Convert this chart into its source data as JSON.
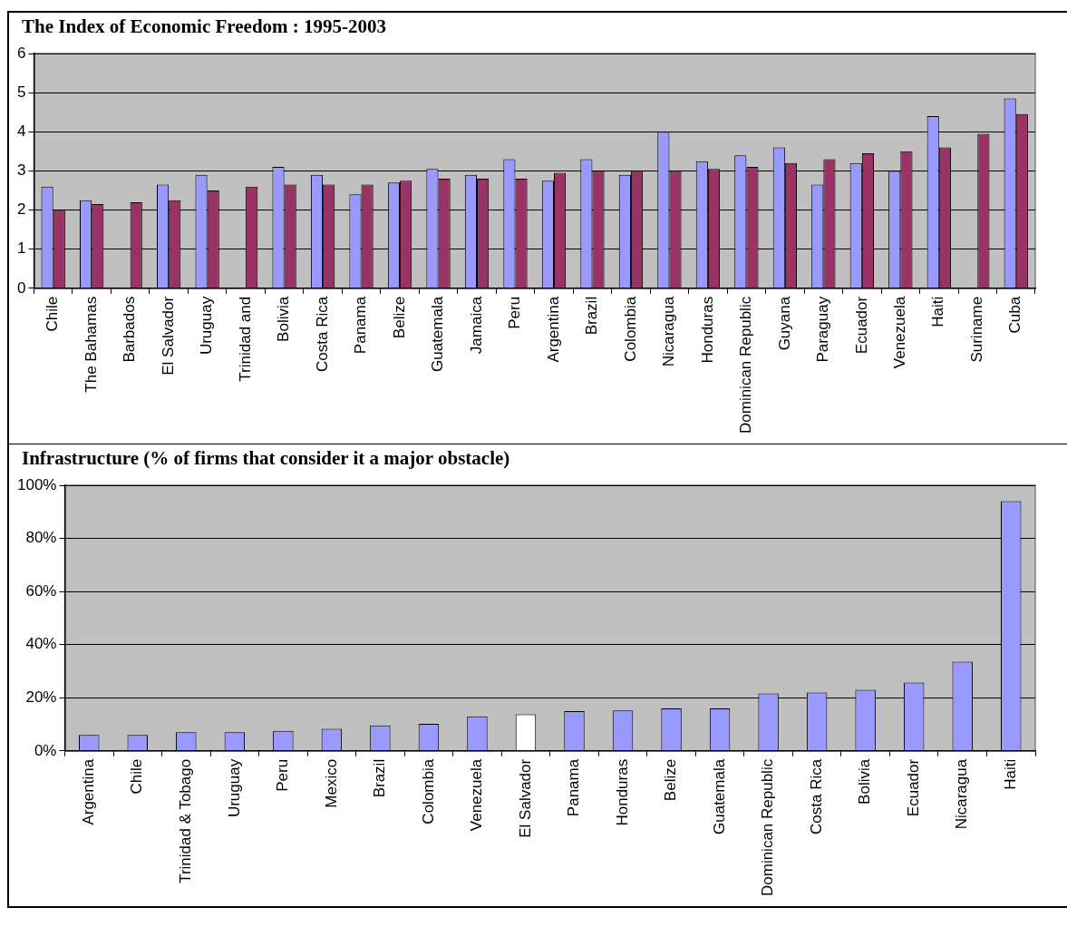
{
  "chart_data": [
    {
      "type": "bar",
      "title": "The Index of Economic Freedom : 1995-2003",
      "categories": [
        "Chile",
        "The Bahamas",
        "Barbados",
        "El Salvador",
        "Uruguay",
        "Trinidad and",
        "Bolivia",
        "Costa Rica",
        "Panama",
        "Belize",
        "Guatemala",
        "Jamaica",
        "Peru",
        "Argentina",
        "Brazil",
        "Colombia",
        "Nicaragua",
        "Honduras",
        "Dominican Republic",
        "Guyana",
        "Paraguay",
        "Ecuador",
        "Venezuela",
        "Haiti",
        "Suriname",
        "Cuba"
      ],
      "series": [
        {
          "color": "#9999ff",
          "values": [
            2.6,
            2.25,
            null,
            2.65,
            2.9,
            null,
            3.1,
            2.9,
            2.4,
            2.7,
            3.05,
            2.9,
            3.3,
            2.75,
            3.3,
            2.9,
            4.0,
            3.25,
            3.4,
            3.6,
            2.65,
            3.2,
            3.0,
            4.4,
            null,
            4.85
          ]
        },
        {
          "color": "#993366",
          "values": [
            2.0,
            2.15,
            2.2,
            2.25,
            2.5,
            2.6,
            2.65,
            2.65,
            2.65,
            2.75,
            2.8,
            2.8,
            2.8,
            2.95,
            3.0,
            3.0,
            3.0,
            3.05,
            3.1,
            3.2,
            3.3,
            3.45,
            3.5,
            3.6,
            3.95,
            4.45
          ]
        }
      ],
      "ylim": [
        0,
        6
      ],
      "yticks": [
        0,
        1,
        2,
        3,
        4,
        5,
        6
      ],
      "grid": "y"
    },
    {
      "type": "bar",
      "title": "Infrastructure (% of firms that consider it a major obstacle)",
      "categories": [
        "Argentina",
        "Chile",
        "Trinidad & Tobago",
        "Uruguay",
        "Peru",
        "Mexico",
        "Brazil",
        "Colombia",
        "Venezuela",
        "El Salvador",
        "Panama",
        "Honduras",
        "Belize",
        "Guatemala",
        "Dominican Republic",
        "Costa Rica",
        "Bolivia",
        "Ecuador",
        "Nicaragua",
        "Haiti"
      ],
      "series": [
        {
          "colors": [
            "#9999ff",
            "#9999ff",
            "#9999ff",
            "#9999ff",
            "#9999ff",
            "#9999ff",
            "#9999ff",
            "#9999ff",
            "#9999ff",
            "#ffffff",
            "#9999ff",
            "#9999ff",
            "#9999ff",
            "#9999ff",
            "#9999ff",
            "#9999ff",
            "#9999ff",
            "#9999ff",
            "#9999ff",
            "#9999ff"
          ],
          "values": [
            6,
            6,
            7,
            7,
            7.5,
            8.3,
            9.6,
            10.2,
            13,
            13.8,
            15,
            15.2,
            16,
            16,
            21.6,
            22,
            23,
            25.7,
            33.6,
            94
          ]
        }
      ],
      "ylim": [
        0,
        100
      ],
      "yticks": [
        {
          "value": 0,
          "label": "0%"
        },
        {
          "value": 20,
          "label": "20%"
        },
        {
          "value": 40,
          "label": "40%"
        },
        {
          "value": 60,
          "label": "60%"
        },
        {
          "value": 80,
          "label": "80%"
        },
        {
          "value": 100,
          "label": "100%"
        }
      ],
      "grid": "y"
    }
  ]
}
